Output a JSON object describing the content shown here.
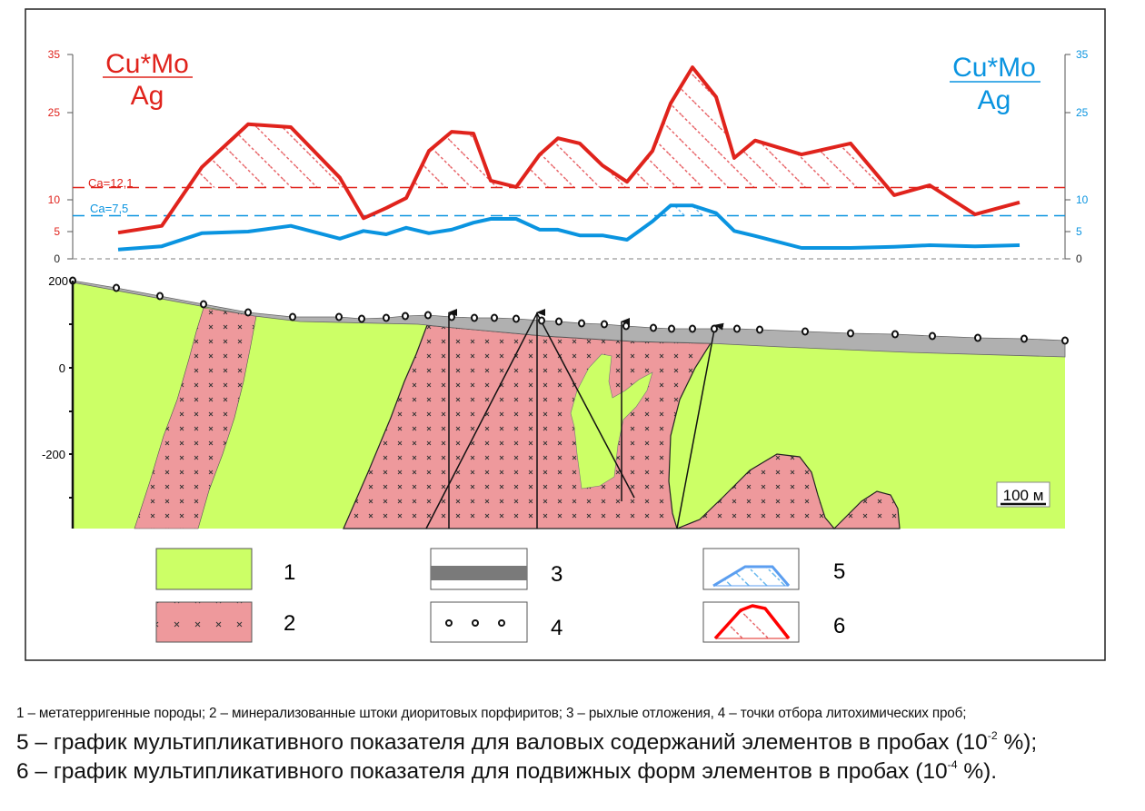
{
  "chart_data": {
    "type": "line",
    "title_left": {
      "numerator": "Cu*Mo",
      "denominator": "Ag"
    },
    "title_right": {
      "numerator": "Cu*Mo",
      "denominator": "Ag"
    },
    "y_ticks_left": [
      "35",
      "25",
      "10",
      "5",
      "0"
    ],
    "y_ticks_right": [
      "35",
      "25",
      "10",
      "5",
      "0"
    ],
    "y_tick_values": [
      0,
      5,
      10,
      25,
      35
    ],
    "ylim": [
      0,
      35
    ],
    "series": [
      {
        "name": "6",
        "color": "#e0231c",
        "values": [
          4.8,
          5.9,
          15.6,
          23.0,
          22.5,
          13.8,
          7.1,
          8.7,
          10.3,
          18.4,
          21.7,
          21.4,
          13.3,
          12.2,
          17.8,
          20.6,
          19.7,
          15.9,
          13.1,
          18.4,
          26.6,
          32.8,
          27.7,
          17.2,
          20.2,
          17.8,
          19.7,
          10.8,
          12.5,
          7.7,
          9.6
        ]
      },
      {
        "name": "5",
        "color": "#0a94e0",
        "values": [
          1.7,
          2.3,
          4.7,
          5.0,
          5.9,
          3.7,
          5.1,
          4.5,
          5.6,
          4.7,
          5.3,
          6.4,
          7.0,
          7.0,
          5.3,
          5.3,
          4.3,
          4.3,
          3.5,
          6.6,
          9.1,
          9.1,
          7.9,
          5.1,
          4.2,
          2.0,
          2.0,
          2.2,
          2.5,
          2.3,
          2.5
        ]
      }
    ],
    "thresholds": [
      {
        "label": "Ca=12,1",
        "value": 12.1,
        "color": "#e0231c"
      },
      {
        "label": "Ca=7,5",
        "value": 7.5,
        "color": "#0a94e0"
      }
    ]
  },
  "section": {
    "elevation_ticks": [
      "200",
      "0",
      "-200"
    ],
    "scale_label": "100 м",
    "colors": {
      "metaterrigenous": "#ccff66",
      "porphyry": "#ee999c",
      "loose": "#b0b0b0"
    }
  },
  "legend": [
    {
      "num": "1"
    },
    {
      "num": "2"
    },
    {
      "num": "3"
    },
    {
      "num": "4"
    },
    {
      "num": "5"
    },
    {
      "num": "6"
    }
  ],
  "caption": {
    "line1": "1 – метатерригенные породы; 2 – минерализованные штоки диоритовых порфиритов; 3 – рыхлые отложения, 4 – точки отбора литохимических проб;",
    "line2_text": "5 – график мультипликативного показателя для валовых содержаний элементов в пробах (10",
    "line2_exp": "-2",
    "line2_end": " %);",
    "line3_text": "6 – график мультипликативного показателя для подвижных форм элементов в пробах (10",
    "line3_exp": "-4",
    "line3_end": " %)."
  }
}
